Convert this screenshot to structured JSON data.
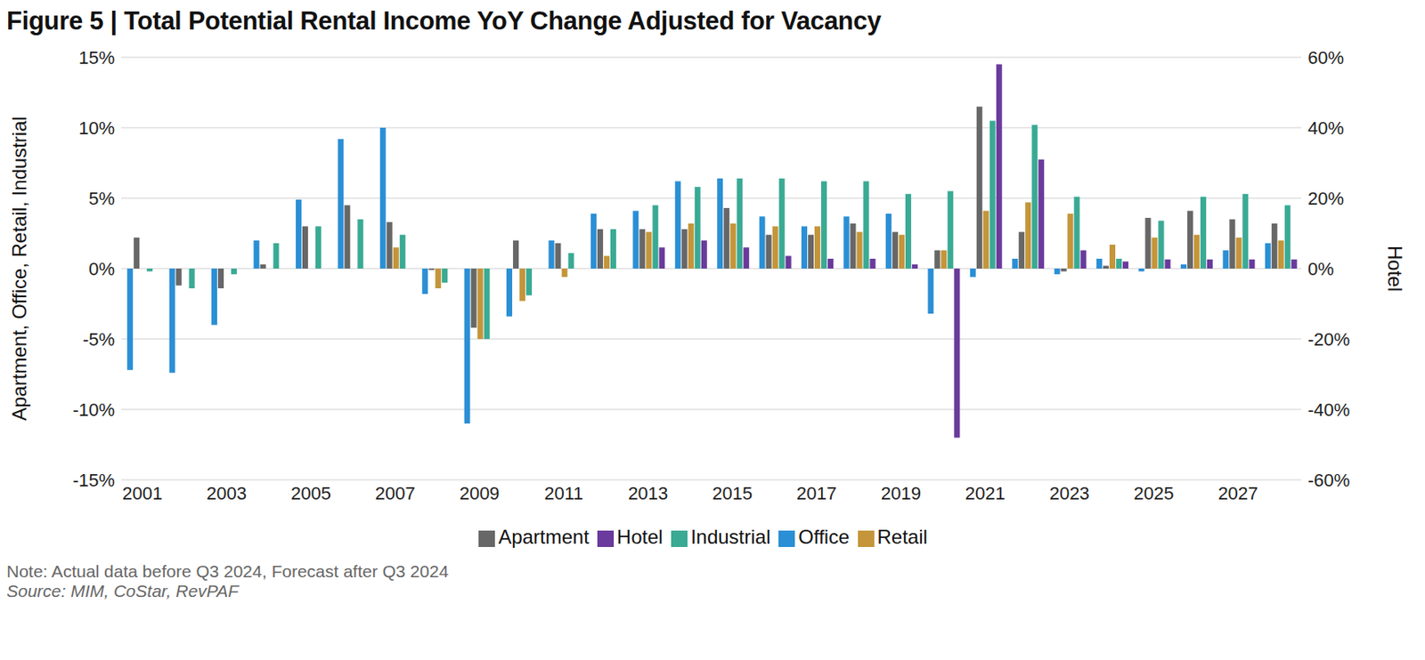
{
  "chart_data": {
    "type": "bar",
    "title": "Figure 5 | Total Potential Rental Income YoY Change Adjusted for Vacancy",
    "note": "Note: Actual data before Q3 2024, Forecast after Q3 2024",
    "source": "Source: MIM, CoStar, RevPAF",
    "y_label": "Apartment, Office, Retail, Industrial",
    "y2_label": "Hotel",
    "categories": [
      "2001",
      null,
      "2003",
      null,
      "2005",
      null,
      "2007",
      null,
      "2009",
      null,
      "2011",
      null,
      "2013",
      null,
      "2015",
      null,
      "2017",
      null,
      "2019",
      null,
      "2021",
      null,
      "2023",
      null,
      "2025",
      null,
      "2027",
      null
    ],
    "series": [
      {
        "name": "Office",
        "color": "#2a8fd5",
        "values": [
          -7.2,
          -7.4,
          -4.0,
          2.0,
          4.9,
          9.2,
          10.0,
          -1.8,
          -11.0,
          -3.4,
          2.0,
          3.9,
          4.1,
          6.2,
          6.4,
          3.7,
          3.0,
          3.7,
          3.9,
          -3.2,
          -0.6,
          0.7,
          -0.4,
          0.7,
          -0.2,
          0.3,
          1.3,
          1.8
        ]
      },
      {
        "name": "Apartment",
        "color": "#676767",
        "values": [
          2.2,
          -1.2,
          -1.4,
          0.3,
          3.0,
          4.5,
          3.3,
          -0.1,
          -4.2,
          2.0,
          1.8,
          2.8,
          2.8,
          2.8,
          4.3,
          2.4,
          2.4,
          3.2,
          2.6,
          1.3,
          11.5,
          2.6,
          -0.2,
          0.2,
          3.6,
          4.1,
          3.5,
          3.2
        ]
      },
      {
        "name": "Retail",
        "color": "#c4953a",
        "values": [
          null,
          null,
          null,
          null,
          null,
          null,
          1.5,
          -1.4,
          -5.0,
          -2.3,
          -0.6,
          0.9,
          2.6,
          3.2,
          3.2,
          3.0,
          3.0,
          2.6,
          2.4,
          1.3,
          4.1,
          4.7,
          3.9,
          1.7,
          2.2,
          2.4,
          2.2,
          2.0
        ]
      },
      {
        "name": "Industrial",
        "color": "#3aaa94",
        "values": [
          -0.2,
          -1.4,
          -0.4,
          1.8,
          3.0,
          3.5,
          2.4,
          -1.0,
          -5.0,
          -1.9,
          1.1,
          2.8,
          4.5,
          5.8,
          6.4,
          6.4,
          6.2,
          6.2,
          5.3,
          5.5,
          10.5,
          10.2,
          5.1,
          0.7,
          3.4,
          5.1,
          5.3,
          4.5
        ]
      },
      {
        "name": "Hotel",
        "color": "#6a3a9c",
        "axis": "y2",
        "values": [
          null,
          null,
          null,
          null,
          null,
          null,
          null,
          null,
          null,
          null,
          null,
          null,
          6.0,
          8.0,
          6.0,
          3.6,
          2.8,
          2.8,
          1.2,
          -48.0,
          58.0,
          31.0,
          5.2,
          2.0,
          2.6,
          2.6,
          2.6,
          2.6
        ]
      }
    ],
    "ylim": [
      -15,
      15
    ],
    "yticks": [
      {
        "value": -15,
        "label": "-15%"
      },
      {
        "value": -10,
        "label": "-10%"
      },
      {
        "value": -5,
        "label": "-5%"
      },
      {
        "value": 0,
        "label": "0%"
      },
      {
        "value": 5,
        "label": "5%"
      },
      {
        "value": 10,
        "label": "10%"
      },
      {
        "value": 15,
        "label": "15%"
      }
    ],
    "y2lim": [
      -60,
      60
    ],
    "y2ticks": [
      {
        "value": -60,
        "label": "-60%"
      },
      {
        "value": -40,
        "label": "-40%"
      },
      {
        "value": -20,
        "label": "-20%"
      },
      {
        "value": 0,
        "label": "0%"
      },
      {
        "value": 20,
        "label": "20%"
      },
      {
        "value": 40,
        "label": "40%"
      },
      {
        "value": 60,
        "label": "60%"
      }
    ],
    "grid": true,
    "legend": "bottom"
  }
}
